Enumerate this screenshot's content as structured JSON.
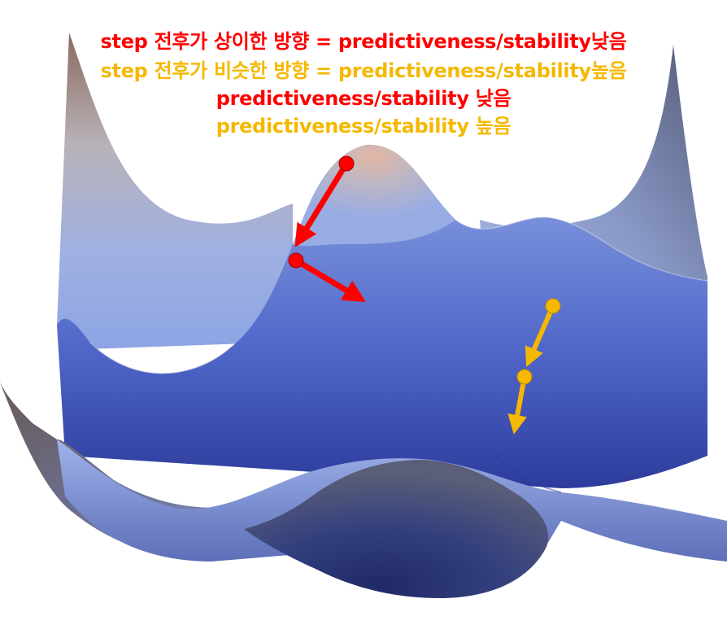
{
  "captions": {
    "line1": "step 전후가 상이한 방향 = predictiveness/stability낮음",
    "line2": "step 전후가 비슷한 방향 = predictiveness/stability높음",
    "line3": "predictiveness/stability 낮음",
    "line4": "predictiveness/stability 높음"
  },
  "colors": {
    "low": "#ff0000",
    "high": "#f5b800",
    "surface_peak": "#e8b49a",
    "surface_mid": "#8fa5e0",
    "surface_deep": "#2f3f9e",
    "surface_dark": "#2b3149"
  }
}
